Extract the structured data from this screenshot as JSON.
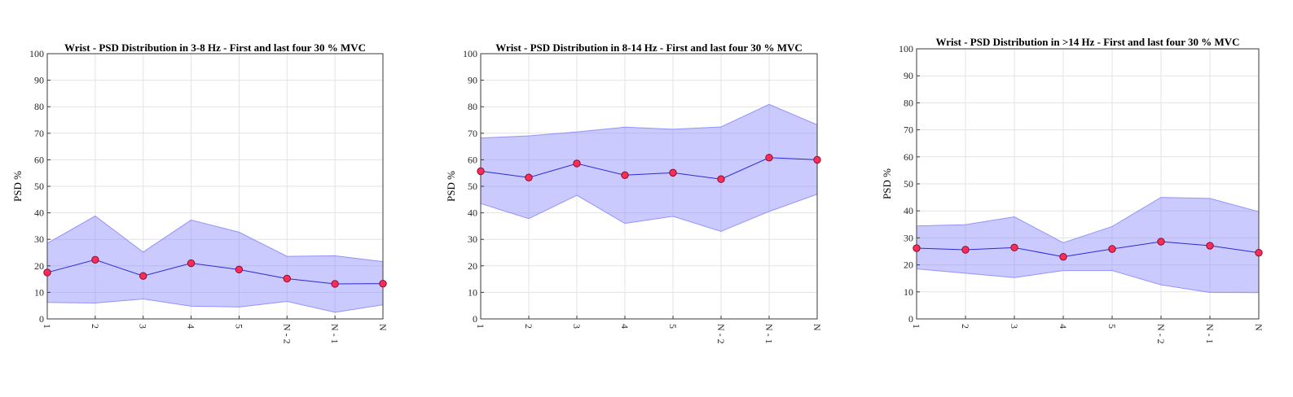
{
  "colors": {
    "band": "#8080ff",
    "line": "#2a2ad8",
    "marker": "#ff2b58",
    "marker_edge": "#80102a"
  },
  "chart_data": [
    {
      "type": "line",
      "title": "Wrist - PSD Distribution in 3-8 Hz  - First and last four 30 % MVC",
      "ylabel": "PSD %",
      "xlabel": "",
      "categories": [
        "1",
        "2",
        "3",
        "4",
        "5",
        "N - 2",
        "N - 1",
        "N"
      ],
      "ylim": [
        0,
        100
      ],
      "yticks": [
        0,
        10,
        20,
        30,
        40,
        50,
        60,
        70,
        80,
        90,
        100
      ],
      "grid": true,
      "series": [
        {
          "values": [
            17.5,
            22.3,
            16.2,
            21.0,
            18.6,
            15.2,
            13.2,
            13.3
          ]
        }
      ],
      "band": {
        "upper": [
          28.5,
          38.8,
          25.2,
          37.3,
          32.7,
          23.6,
          23.8,
          21.6
        ],
        "lower": [
          6.2,
          6.0,
          7.5,
          4.8,
          4.5,
          6.6,
          2.5,
          5.3
        ]
      }
    },
    {
      "type": "line",
      "title": "Wrist - PSD Distribution in 8-14 Hz  - First and last four 30 % MVC",
      "ylabel": "PSD %",
      "xlabel": "",
      "categories": [
        "1",
        "2",
        "3",
        "4",
        "5",
        "N - 2",
        "N - 1",
        "N"
      ],
      "ylim": [
        0,
        100
      ],
      "yticks": [
        0,
        10,
        20,
        30,
        40,
        50,
        60,
        70,
        80,
        90,
        100
      ],
      "grid": true,
      "series": [
        {
          "values": [
            55.7,
            53.3,
            58.6,
            54.2,
            55.1,
            52.7,
            60.8,
            60.0
          ]
        }
      ],
      "band": {
        "upper": [
          68.2,
          69.0,
          70.5,
          72.3,
          71.5,
          72.4,
          80.9,
          73.2
        ],
        "lower": [
          43.5,
          37.8,
          46.6,
          36.0,
          38.7,
          33.0,
          40.5,
          47.0
        ]
      }
    },
    {
      "type": "line",
      "title": "Wrist - PSD Distribution in >14 Hz  - First and last four 30 % MVC",
      "ylabel": "PSD %",
      "xlabel": "",
      "categories": [
        "1",
        "2",
        "3",
        "4",
        "5",
        "N - 2",
        "N - 1",
        "N"
      ],
      "ylim": [
        0,
        100
      ],
      "yticks": [
        0,
        10,
        20,
        30,
        40,
        50,
        60,
        70,
        80,
        90,
        100
      ],
      "grid": true,
      "series": [
        {
          "values": [
            26.2,
            25.6,
            26.4,
            23.0,
            25.9,
            28.6,
            27.1,
            24.5
          ]
        }
      ],
      "band": {
        "upper": [
          34.4,
          34.9,
          37.8,
          28.2,
          34.2,
          45.0,
          44.6,
          39.7
        ],
        "lower": [
          18.5,
          16.9,
          15.3,
          17.9,
          17.9,
          12.6,
          9.8,
          9.7
        ]
      }
    }
  ]
}
